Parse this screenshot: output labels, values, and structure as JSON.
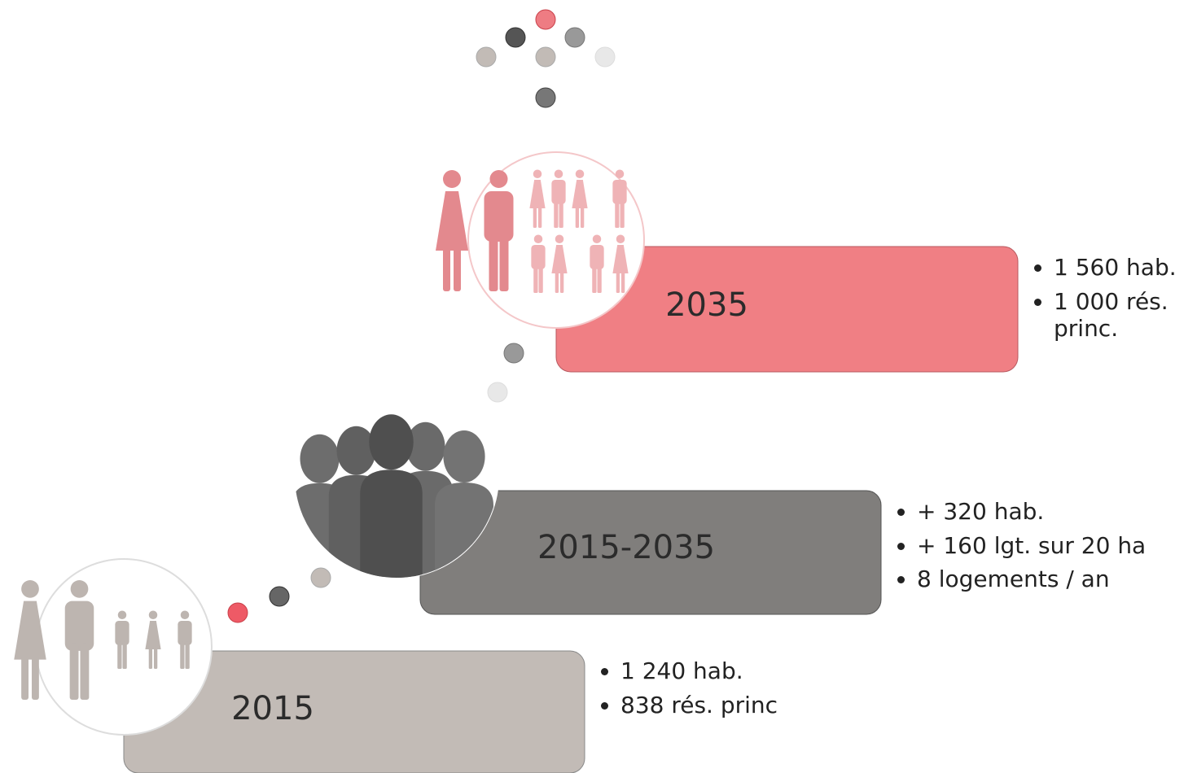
{
  "stages": [
    {
      "label": "2015",
      "bullets": [
        "1 240 hab.",
        "838 rés. princ"
      ]
    },
    {
      "label": "2015-2035",
      "bullets": [
        "+ 320 hab.",
        "+ 160 lgt. sur 20 ha",
        "8 logements / an"
      ]
    },
    {
      "label": "2035",
      "bullets": [
        "1 560 hab.",
        "1 000 rés. princ."
      ]
    }
  ]
}
